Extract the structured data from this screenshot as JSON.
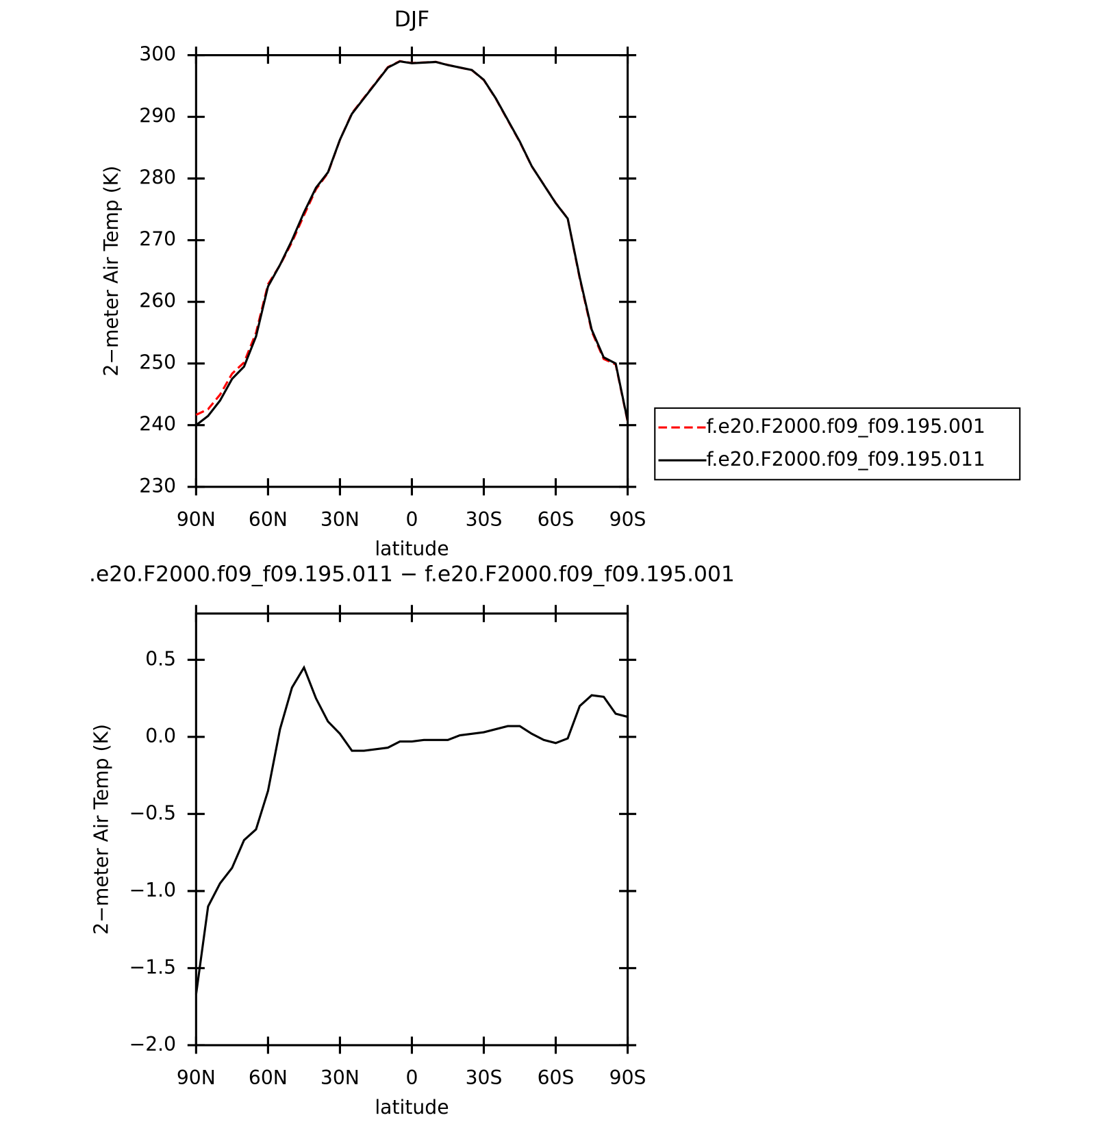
{
  "chart_data": [
    {
      "type": "line",
      "title": "DJF",
      "xlabel": "latitude",
      "ylabel": "2−meter Air Temp (K)",
      "x": [
        90,
        85,
        80,
        75,
        70,
        65,
        60,
        55,
        50,
        45,
        40,
        35,
        30,
        25,
        20,
        15,
        10,
        5,
        0,
        -5,
        -10,
        -15,
        -20,
        -25,
        -30,
        -35,
        -40,
        -45,
        -50,
        -55,
        -60,
        -65,
        -70,
        -75,
        -80,
        -85,
        -90
      ],
      "xlim": [
        90,
        -90
      ],
      "xticks": [
        {
          "value": 90,
          "label": "90N"
        },
        {
          "value": 60,
          "label": "60N"
        },
        {
          "value": 30,
          "label": "30N"
        },
        0,
        {
          "value": -30,
          "label": "30S"
        },
        {
          "value": -60,
          "label": "60S"
        },
        {
          "value": -90,
          "label": "90S"
        }
      ],
      "ylim": [
        230,
        300
      ],
      "yticks": [
        230,
        240,
        250,
        260,
        270,
        280,
        290,
        300
      ],
      "legend": "right",
      "series": [
        {
          "name": "f.e20.F2000.f09_f09.195.001",
          "color": "#ff0000",
          "linestyle": "dashed",
          "values": [
            241.67,
            242.6,
            244.95,
            248.35,
            250.17,
            255.0,
            262.85,
            265.95,
            269.68,
            274.05,
            278.25,
            280.9,
            286.28,
            290.59,
            293.09,
            295.58,
            298.07,
            299.03,
            298.73,
            298.82,
            298.92,
            298.42,
            297.99,
            297.58,
            295.97,
            292.95,
            289.43,
            285.93,
            281.98,
            279.02,
            276.04,
            273.51,
            263.8,
            255.23,
            250.74,
            249.85,
            240.57
          ]
        },
        {
          "name": "f.e20.F2000.f09_f09.195.011",
          "color": "#000000",
          "linestyle": "solid",
          "values": [
            240.0,
            241.5,
            244.0,
            247.5,
            249.5,
            254.4,
            262.5,
            266.0,
            270.0,
            274.5,
            278.5,
            281.0,
            286.3,
            290.5,
            293.0,
            295.5,
            298.0,
            299.0,
            298.7,
            298.8,
            298.9,
            298.4,
            298.0,
            297.6,
            296.0,
            293.0,
            289.5,
            286.0,
            282.0,
            279.0,
            276.0,
            273.5,
            264.0,
            255.5,
            251.0,
            250.0,
            240.7
          ]
        }
      ]
    },
    {
      "type": "line",
      "title": ".e20.F2000.f09_f09.195.011 − f.e20.F2000.f09_f09.195.001",
      "xlabel": "latitude",
      "ylabel": "2−meter Air Temp (K)",
      "x": [
        90,
        85,
        80,
        75,
        70,
        65,
        60,
        55,
        50,
        45,
        40,
        35,
        30,
        25,
        20,
        15,
        10,
        5,
        0,
        -5,
        -10,
        -15,
        -20,
        -25,
        -30,
        -35,
        -40,
        -45,
        -50,
        -55,
        -60,
        -65,
        -70,
        -75,
        -80,
        -85,
        -90
      ],
      "xlim": [
        90,
        -90
      ],
      "xticks": [
        {
          "value": 90,
          "label": "90N"
        },
        {
          "value": 60,
          "label": "60N"
        },
        {
          "value": 30,
          "label": "30N"
        },
        0,
        {
          "value": -30,
          "label": "30S"
        },
        {
          "value": -60,
          "label": "60S"
        },
        {
          "value": -90,
          "label": "90S"
        }
      ],
      "ylim": [
        -2,
        0.8
      ],
      "yticks": [
        {
          "value": -2,
          "label": "−2.0"
        },
        {
          "value": -1.5,
          "label": "−1.5"
        },
        {
          "value": -1,
          "label": "−1.0"
        },
        {
          "value": -0.5,
          "label": "−0.5"
        },
        {
          "value": 0,
          "label": "0.0"
        },
        0.5
      ],
      "series": [
        {
          "color": "#000000",
          "linestyle": "solid",
          "values": [
            -1.67,
            -1.1,
            -0.95,
            -0.85,
            -0.67,
            -0.6,
            -0.35,
            0.05,
            0.32,
            0.45,
            0.25,
            0.1,
            0.02,
            -0.09,
            -0.09,
            -0.08,
            -0.07,
            -0.03,
            -0.03,
            -0.02,
            -0.02,
            -0.02,
            0.01,
            0.02,
            0.03,
            0.05,
            0.07,
            0.07,
            0.02,
            -0.02,
            -0.04,
            -0.01,
            0.2,
            0.27,
            0.26,
            0.15,
            0.13
          ]
        }
      ]
    }
  ]
}
